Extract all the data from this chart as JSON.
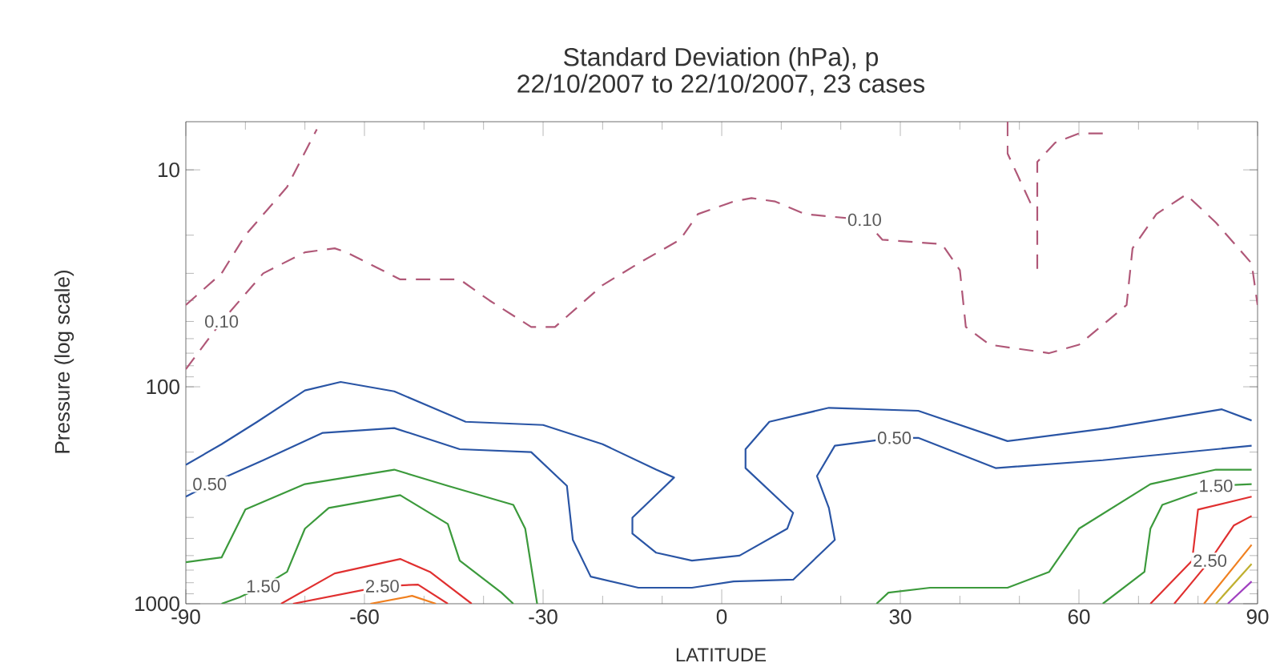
{
  "chart_data": {
    "type": "line",
    "title": "Standard Deviation (hPa), p",
    "subtitle": "22/10/2007 to 22/10/2007,  23 cases",
    "xlabel": "LATITUDE",
    "ylabel": "Pressure (log scale)",
    "log": "y",
    "xlim": [
      -90,
      90
    ],
    "xticks": [
      -90,
      -60,
      -30,
      0,
      30,
      60,
      90
    ],
    "ylim": [
      1000,
      6
    ],
    "yticks": [
      10,
      100,
      1000
    ],
    "series": [
      {
        "color": "#b05878",
        "line_style": "dashed",
        "x": [
          -90,
          -84,
          -80,
          -73,
          -68
        ],
        "values": [
          42,
          30,
          20,
          12,
          6.5
        ]
      },
      {
        "color": "#b05878",
        "line_style": "dashed",
        "x": [
          -90,
          -84,
          -77,
          -70,
          -65,
          -63,
          -54,
          -44,
          -39,
          -32,
          -28,
          -20,
          -14,
          -7,
          -4,
          2,
          5,
          9,
          14,
          24,
          27,
          37,
          40,
          41,
          45,
          55,
          60,
          68,
          69,
          73,
          78,
          83,
          89,
          90
        ],
        "values": [
          83,
          50,
          30,
          24,
          23,
          24,
          32,
          32,
          40,
          53,
          53,
          34,
          27,
          21,
          16,
          14,
          13.5,
          14,
          16,
          17,
          21,
          22,
          29,
          53,
          64,
          70,
          64,
          42,
          23,
          16,
          13,
          17.5,
          27,
          42
        ]
      },
      {
        "color": "#b05878",
        "line_style": "dashed",
        "x": [
          48,
          48,
          52
        ],
        "values": [
          6,
          8.4,
          14.5
        ]
      },
      {
        "color": "#b05878",
        "line_style": "dashed",
        "x": [
          64,
          60,
          56,
          53,
          53
        ],
        "values": [
          6.8,
          6.8,
          7.5,
          9.2,
          29
        ]
      },
      {
        "color": "#2a55a5",
        "x": [
          -90,
          -84,
          -78,
          -70,
          -64,
          -55,
          -43,
          -30,
          -20,
          -11,
          -8,
          -10,
          -15,
          -15,
          -11,
          -5,
          3,
          11,
          12,
          4,
          4,
          8,
          18,
          33,
          48,
          65,
          84,
          89
        ],
        "values": [
          229,
          184,
          145,
          104,
          95,
          105,
          145,
          150,
          184,
          241,
          262,
          296,
          401,
          475,
          582,
          633,
          600,
          451,
          381,
          237,
          194,
          145,
          125,
          129,
          178,
          155,
          127,
          143
        ]
      },
      {
        "color": "#2a55a5",
        "x": [
          -90,
          -86,
          -77,
          -67,
          -55,
          -44,
          -32,
          -26,
          -25,
          -22,
          -14,
          -5,
          2,
          12,
          19,
          18,
          16,
          19,
          29,
          33,
          46,
          64,
          89
        ],
        "values": [
          321,
          281,
          218,
          163,
          155,
          194,
          200,
          286,
          508,
          750,
          844,
          844,
          789,
          775,
          508,
          362,
          258,
          187,
          172,
          172,
          237,
          218,
          187
        ]
      },
      {
        "color": "#3c9a3c",
        "x": [
          -90,
          -84,
          -80,
          -70,
          -55,
          -46,
          -35,
          -33,
          -31
        ],
        "values": [
          644,
          612,
          368,
          281,
          241,
          286,
          350,
          451,
          1000
        ]
      },
      {
        "color": "#3c9a3c",
        "x": [
          -84,
          -81,
          -77,
          -73,
          -70,
          -66,
          -54,
          -46,
          -44,
          -37,
          -35
        ],
        "values": [
          1000,
          935,
          830,
          713,
          451,
          362,
          316,
          429,
          633,
          889,
          1000
        ]
      },
      {
        "color": "#3c9a3c",
        "x": [
          26,
          28,
          35,
          48,
          55,
          60,
          72,
          83,
          89
        ],
        "values": [
          1000,
          889,
          844,
          844,
          713,
          451,
          281,
          241,
          241
        ]
      },
      {
        "color": "#3c9a3c",
        "x": [
          64,
          71,
          72,
          74,
          83,
          89
        ],
        "values": [
          1000,
          713,
          451,
          350,
          286,
          281
        ]
      },
      {
        "color": "#e03030",
        "x": [
          -74,
          -65,
          -54,
          -49,
          -42
        ],
        "values": [
          1000,
          725,
          622,
          713,
          1000
        ]
      },
      {
        "color": "#e03030",
        "x": [
          -72,
          -57,
          -51,
          -46
        ],
        "values": [
          1000,
          830,
          816,
          1000
        ]
      },
      {
        "color": "#f08020",
        "x": [
          -59,
          -52,
          -48
        ],
        "values": [
          1000,
          920,
          1000
        ]
      },
      {
        "color": "#e03030",
        "x": [
          72,
          79,
          80,
          89
        ],
        "values": [
          1000,
          633,
          368,
          321
        ]
      },
      {
        "color": "#e03030",
        "x": [
          76,
          78,
          82,
          86,
          89
        ],
        "values": [
          1000,
          859,
          633,
          436,
          394
        ]
      },
      {
        "color": "#f08020",
        "x": [
          81,
          89
        ],
        "values": [
          1000,
          535
        ]
      },
      {
        "color": "#c0b030",
        "x": [
          83,
          89
        ],
        "values": [
          1000,
          655
        ]
      },
      {
        "color": "#a040c0",
        "x": [
          85,
          89
        ],
        "values": [
          1000,
          789
        ]
      }
    ],
    "annotations": [
      {
        "text": "0.10",
        "x": -84,
        "y": 50
      },
      {
        "text": "0.10",
        "x": 24,
        "y": 17
      },
      {
        "text": "0.50",
        "x": -86,
        "y": 281
      },
      {
        "text": "0.50",
        "x": 29,
        "y": 172
      },
      {
        "text": "1.50",
        "x": -77,
        "y": 830
      },
      {
        "text": "1.50",
        "x": 83,
        "y": 286
      },
      {
        "text": "2.50",
        "x": -57,
        "y": 830
      },
      {
        "text": "2.50",
        "x": 82,
        "y": 633
      }
    ]
  }
}
